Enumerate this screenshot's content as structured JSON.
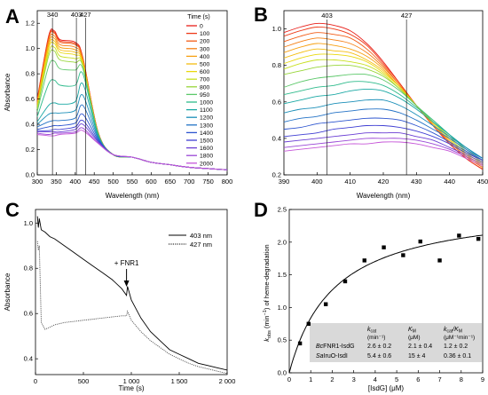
{
  "chart_data": [
    {
      "panel": "A",
      "type": "line",
      "xlabel": "Wavelength (nm)",
      "ylabel": "Absorbance",
      "xlim": [
        300,
        800
      ],
      "ylim": [
        0,
        1.3
      ],
      "xticks": [
        "300",
        "350",
        "400",
        "450",
        "500",
        "550",
        "600",
        "650",
        "700",
        "750",
        "800"
      ],
      "yticks": [
        "0.0",
        "0.2",
        "0.4",
        "0.6",
        "0.8",
        "1.0",
        "1.2"
      ],
      "markers": [
        340,
        403,
        427
      ],
      "legend_title": "Time (s)",
      "legend_position": "right",
      "series": [
        {
          "name": "0",
          "color": "#e8201a",
          "values": [
            0.6,
            1.1,
            1.14,
            1.07,
            1.05,
            0.93,
            0.34,
            0.16,
            0.14,
            0.1,
            0.08,
            0.06,
            0.04
          ]
        },
        {
          "name": "100",
          "color": "#ee3a18",
          "values": [
            0.59,
            1.09,
            1.13,
            1.06,
            1.04,
            0.92,
            0.34,
            0.16,
            0.14,
            0.1,
            0.08,
            0.06,
            0.04
          ]
        },
        {
          "name": "200",
          "color": "#f25c16",
          "values": [
            0.58,
            1.08,
            1.12,
            1.05,
            1.03,
            0.92,
            0.34,
            0.16,
            0.14,
            0.1,
            0.08,
            0.06,
            0.04
          ]
        },
        {
          "name": "300",
          "color": "#f57f14",
          "values": [
            0.57,
            1.06,
            1.1,
            1.03,
            1.01,
            0.91,
            0.33,
            0.16,
            0.14,
            0.1,
            0.08,
            0.06,
            0.04
          ]
        },
        {
          "name": "400",
          "color": "#f7a012",
          "values": [
            0.56,
            1.04,
            1.08,
            1.01,
            0.99,
            0.9,
            0.33,
            0.16,
            0.14,
            0.1,
            0.08,
            0.06,
            0.04
          ]
        },
        {
          "name": "500",
          "color": "#f5bd10",
          "values": [
            0.55,
            1.02,
            1.06,
            0.99,
            0.97,
            0.89,
            0.33,
            0.16,
            0.14,
            0.1,
            0.08,
            0.06,
            0.04
          ]
        },
        {
          "name": "600",
          "color": "#e9d80e",
          "values": [
            0.54,
            1.0,
            1.04,
            0.97,
            0.95,
            0.88,
            0.33,
            0.16,
            0.14,
            0.1,
            0.08,
            0.06,
            0.04
          ]
        },
        {
          "name": "700",
          "color": "#c8e020",
          "values": [
            0.53,
            0.97,
            1.01,
            0.94,
            0.92,
            0.87,
            0.33,
            0.16,
            0.14,
            0.1,
            0.08,
            0.06,
            0.04
          ]
        },
        {
          "name": "800",
          "color": "#98d63a",
          "values": [
            0.52,
            0.94,
            0.98,
            0.91,
            0.89,
            0.86,
            0.33,
            0.16,
            0.14,
            0.1,
            0.08,
            0.06,
            0.04
          ]
        },
        {
          "name": "950",
          "color": "#5cc86a",
          "values": [
            0.5,
            0.86,
            0.9,
            0.84,
            0.83,
            0.84,
            0.33,
            0.16,
            0.14,
            0.1,
            0.08,
            0.06,
            0.04
          ]
        },
        {
          "name": "1000",
          "color": "#2fbb8c",
          "values": [
            0.46,
            0.72,
            0.75,
            0.71,
            0.71,
            0.8,
            0.32,
            0.16,
            0.14,
            0.1,
            0.08,
            0.06,
            0.04
          ]
        },
        {
          "name": "1100",
          "color": "#1aa8a4",
          "values": [
            0.42,
            0.55,
            0.57,
            0.56,
            0.58,
            0.72,
            0.31,
            0.16,
            0.14,
            0.1,
            0.08,
            0.06,
            0.04
          ]
        },
        {
          "name": "1200",
          "color": "#1b8fb8",
          "values": [
            0.4,
            0.48,
            0.49,
            0.49,
            0.51,
            0.63,
            0.3,
            0.16,
            0.14,
            0.1,
            0.08,
            0.06,
            0.04
          ]
        },
        {
          "name": "1300",
          "color": "#2372c6",
          "values": [
            0.38,
            0.42,
            0.43,
            0.43,
            0.45,
            0.55,
            0.29,
            0.16,
            0.14,
            0.1,
            0.08,
            0.06,
            0.04
          ]
        },
        {
          "name": "1400",
          "color": "#2d55cf",
          "values": [
            0.36,
            0.38,
            0.39,
            0.39,
            0.41,
            0.48,
            0.28,
            0.16,
            0.14,
            0.1,
            0.08,
            0.06,
            0.04
          ]
        },
        {
          "name": "1500",
          "color": "#3f3ed3",
          "values": [
            0.35,
            0.35,
            0.36,
            0.36,
            0.38,
            0.43,
            0.27,
            0.16,
            0.14,
            0.1,
            0.08,
            0.06,
            0.04
          ]
        },
        {
          "name": "1600",
          "color": "#6a3ed4",
          "values": [
            0.34,
            0.34,
            0.34,
            0.34,
            0.36,
            0.4,
            0.26,
            0.16,
            0.14,
            0.1,
            0.08,
            0.06,
            0.04
          ]
        },
        {
          "name": "1800",
          "color": "#9a47d6",
          "values": [
            0.33,
            0.32,
            0.33,
            0.33,
            0.34,
            0.37,
            0.25,
            0.16,
            0.14,
            0.1,
            0.08,
            0.06,
            0.04
          ]
        },
        {
          "name": "2000",
          "color": "#c656d8",
          "values": [
            0.32,
            0.31,
            0.31,
            0.32,
            0.33,
            0.35,
            0.25,
            0.16,
            0.14,
            0.1,
            0.08,
            0.06,
            0.04
          ]
        }
      ],
      "x": [
        300,
        330,
        345,
        360,
        400,
        420,
        460,
        500,
        550,
        600,
        650,
        700,
        800
      ]
    },
    {
      "panel": "B",
      "type": "line",
      "xlabel": "Wavelength (nm)",
      "ylabel": "",
      "xlim": [
        390,
        450
      ],
      "ylim": [
        0.2,
        1.1
      ],
      "xticks": [
        "390",
        "400",
        "410",
        "420",
        "430",
        "440",
        "450"
      ],
      "yticks": [
        "0.2",
        "0.4",
        "0.6",
        "0.8",
        "1.0"
      ],
      "markers": [
        403,
        427
      ],
      "x": [
        390,
        395,
        400,
        405,
        410,
        415,
        420,
        425,
        430,
        435,
        440,
        445,
        450
      ],
      "series": [
        {
          "name": "0",
          "color": "#e8201a",
          "values": [
            0.98,
            1.01,
            1.03,
            1.02,
            0.99,
            0.92,
            0.82,
            0.7,
            0.58,
            0.47,
            0.37,
            0.29,
            0.23
          ]
        },
        {
          "name": "100",
          "color": "#ee3a18",
          "values": [
            0.96,
            0.99,
            1.01,
            1.0,
            0.97,
            0.91,
            0.81,
            0.7,
            0.58,
            0.47,
            0.37,
            0.29,
            0.23
          ]
        },
        {
          "name": "200",
          "color": "#f25c16",
          "values": [
            0.93,
            0.96,
            0.98,
            0.97,
            0.95,
            0.89,
            0.8,
            0.69,
            0.58,
            0.47,
            0.38,
            0.3,
            0.24
          ]
        },
        {
          "name": "300",
          "color": "#f57f14",
          "values": [
            0.9,
            0.93,
            0.95,
            0.94,
            0.92,
            0.87,
            0.79,
            0.69,
            0.58,
            0.48,
            0.38,
            0.3,
            0.24
          ]
        },
        {
          "name": "400",
          "color": "#f7a012",
          "values": [
            0.87,
            0.9,
            0.92,
            0.91,
            0.89,
            0.85,
            0.78,
            0.68,
            0.58,
            0.48,
            0.39,
            0.31,
            0.25
          ]
        },
        {
          "name": "500",
          "color": "#f5bd10",
          "values": [
            0.84,
            0.87,
            0.89,
            0.88,
            0.87,
            0.83,
            0.77,
            0.68,
            0.58,
            0.48,
            0.39,
            0.31,
            0.25
          ]
        },
        {
          "name": "600",
          "color": "#e9d80e",
          "values": [
            0.81,
            0.84,
            0.86,
            0.86,
            0.85,
            0.82,
            0.76,
            0.68,
            0.58,
            0.49,
            0.4,
            0.32,
            0.26
          ]
        },
        {
          "name": "700",
          "color": "#c8e020",
          "values": [
            0.78,
            0.81,
            0.83,
            0.83,
            0.82,
            0.8,
            0.75,
            0.67,
            0.58,
            0.49,
            0.4,
            0.32,
            0.26
          ]
        },
        {
          "name": "800",
          "color": "#98d63a",
          "values": [
            0.75,
            0.77,
            0.79,
            0.8,
            0.8,
            0.78,
            0.74,
            0.67,
            0.58,
            0.49,
            0.41,
            0.33,
            0.27
          ]
        },
        {
          "name": "950",
          "color": "#5cc86a",
          "values": [
            0.68,
            0.71,
            0.73,
            0.74,
            0.75,
            0.75,
            0.72,
            0.66,
            0.58,
            0.5,
            0.42,
            0.34,
            0.28
          ]
        },
        {
          "name": "1000",
          "color": "#2fbb8c",
          "values": [
            0.64,
            0.66,
            0.68,
            0.69,
            0.71,
            0.71,
            0.69,
            0.64,
            0.57,
            0.5,
            0.42,
            0.35,
            0.29
          ]
        },
        {
          "name": "1100",
          "color": "#1aa8a4",
          "values": [
            0.59,
            0.61,
            0.63,
            0.64,
            0.66,
            0.67,
            0.66,
            0.62,
            0.56,
            0.49,
            0.42,
            0.35,
            0.29
          ]
        },
        {
          "name": "1200",
          "color": "#1b8fb8",
          "values": [
            0.54,
            0.56,
            0.57,
            0.59,
            0.6,
            0.61,
            0.61,
            0.58,
            0.53,
            0.47,
            0.41,
            0.35,
            0.29
          ]
        },
        {
          "name": "1300",
          "color": "#2372c6",
          "values": [
            0.49,
            0.51,
            0.52,
            0.54,
            0.55,
            0.56,
            0.56,
            0.54,
            0.5,
            0.45,
            0.4,
            0.34,
            0.29
          ]
        },
        {
          "name": "1400",
          "color": "#2d55cf",
          "values": [
            0.45,
            0.46,
            0.48,
            0.49,
            0.5,
            0.51,
            0.51,
            0.5,
            0.47,
            0.43,
            0.38,
            0.33,
            0.28
          ]
        },
        {
          "name": "1500",
          "color": "#3f3ed3",
          "values": [
            0.41,
            0.42,
            0.43,
            0.45,
            0.46,
            0.47,
            0.47,
            0.46,
            0.44,
            0.41,
            0.37,
            0.32,
            0.28
          ]
        },
        {
          "name": "1600",
          "color": "#6a3ed4",
          "values": [
            0.38,
            0.39,
            0.4,
            0.41,
            0.42,
            0.43,
            0.43,
            0.43,
            0.41,
            0.39,
            0.35,
            0.31,
            0.27
          ]
        },
        {
          "name": "1800",
          "color": "#9a47d6",
          "values": [
            0.35,
            0.36,
            0.37,
            0.38,
            0.39,
            0.4,
            0.4,
            0.4,
            0.39,
            0.37,
            0.34,
            0.3,
            0.26
          ]
        },
        {
          "name": "2000",
          "color": "#c656d8",
          "values": [
            0.33,
            0.34,
            0.35,
            0.36,
            0.37,
            0.37,
            0.38,
            0.38,
            0.37,
            0.35,
            0.33,
            0.29,
            0.25
          ]
        }
      ]
    },
    {
      "panel": "C",
      "type": "line",
      "xlabel": "Time (s)",
      "ylabel": "Absorbance",
      "xlim": [
        0,
        2000
      ],
      "ylim": [
        0.33,
        1.06
      ],
      "xticks": [
        "0",
        "500",
        "1 000",
        "1 500",
        "2 000"
      ],
      "yticks": [
        "0.4",
        "0.6",
        "0.8",
        "1.0"
      ],
      "annotation": "+ FNR1",
      "annotation_x": 950,
      "legend_position": "top-right",
      "series": [
        {
          "name": "403 nm",
          "style": "solid",
          "x": [
            20,
            30,
            40,
            60,
            100,
            150,
            200,
            300,
            400,
            500,
            600,
            700,
            800,
            900,
            950,
            960,
            1000,
            1100,
            1200,
            1300,
            1400,
            1500,
            1600,
            1700,
            1800,
            1900,
            2000
          ],
          "values": [
            1.03,
            0.98,
            1.02,
            0.97,
            0.96,
            0.94,
            0.93,
            0.9,
            0.87,
            0.84,
            0.81,
            0.78,
            0.75,
            0.71,
            0.68,
            0.72,
            0.66,
            0.58,
            0.52,
            0.48,
            0.44,
            0.42,
            0.4,
            0.38,
            0.37,
            0.36,
            0.35
          ]
        },
        {
          "name": "427 nm",
          "style": "dotted",
          "x": [
            20,
            30,
            40,
            60,
            100,
            150,
            200,
            300,
            400,
            500,
            600,
            700,
            800,
            900,
            950,
            960,
            1000,
            1100,
            1200,
            1300,
            1400,
            1500,
            1600,
            1700,
            1800,
            1900,
            2000
          ],
          "values": [
            0.92,
            0.88,
            0.9,
            0.56,
            0.53,
            0.54,
            0.55,
            0.56,
            0.565,
            0.57,
            0.575,
            0.58,
            0.585,
            0.59,
            0.59,
            0.61,
            0.57,
            0.52,
            0.48,
            0.45,
            0.42,
            0.4,
            0.38,
            0.365,
            0.355,
            0.345,
            0.335
          ]
        }
      ]
    },
    {
      "panel": "D",
      "type": "scatter",
      "xlabel": "[IsdG] (μM)",
      "ylabel": "k_obs (min⁻¹) of heme-degradation",
      "ylabel_parts": {
        "k": "k",
        "sub": "obs",
        "unit": " (min",
        "sup": "−1",
        "rest": ") of heme-degradation"
      },
      "xlim": [
        0,
        9
      ],
      "ylim": [
        0,
        2.5
      ],
      "xticks": [
        "0",
        "1",
        "2",
        "3",
        "4",
        "5",
        "6",
        "7",
        "8",
        "9"
      ],
      "yticks": [
        "0.0",
        "0.5",
        "1.0",
        "1.5",
        "2.0",
        "2.5"
      ],
      "points": {
        "x": [
          0.5,
          0.9,
          1.7,
          2.6,
          3.5,
          4.4,
          5.3,
          6.1,
          7.0,
          7.9,
          8.8
        ],
        "y": [
          0.45,
          0.75,
          1.05,
          1.4,
          1.72,
          1.92,
          1.8,
          2.01,
          1.72,
          2.1,
          2.05
        ]
      },
      "fit": {
        "kcat": 2.6,
        "km": 2.1
      },
      "table": {
        "header": [
          "",
          "k_cat",
          "K_M",
          "k_cat/K_M"
        ],
        "header_italic": [
          "",
          "k",
          "K",
          "k"
        ],
        "header_sub": [
          "",
          "cat",
          "M",
          "cat"
        ],
        "header_suffix": [
          "",
          "",
          "",
          "/K"
        ],
        "header_suffix_sub": [
          "",
          "",
          "",
          "M"
        ],
        "units": [
          "",
          "(min⁻¹)",
          "(μM)",
          "(μM⁻¹min⁻¹)"
        ],
        "rows": [
          {
            "name_italic": "Bc",
            "name_rest": "FNR1-IsdG",
            "kcat": "2.6 ± 0.2",
            "km": "2.1 ± 0.4",
            "ratio": "1.2 ± 0.2"
          },
          {
            "name_italic": "Sa",
            "name_rest": "IruO-IsdI",
            "kcat": "5.4 ± 0.6",
            "km": "15 ± 4",
            "ratio": "0.36 ± 0.1"
          }
        ]
      }
    }
  ],
  "labels": {
    "A": "A",
    "B": "B",
    "C": "C",
    "D": "D"
  }
}
